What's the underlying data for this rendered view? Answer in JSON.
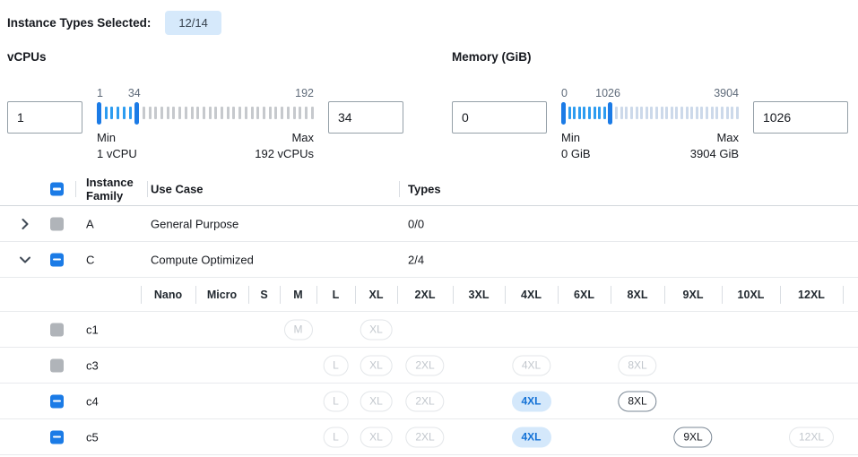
{
  "header": {
    "label": "Instance Types Selected:",
    "badge": "12/14"
  },
  "filters": {
    "vcpus": {
      "title": "vCPUs",
      "low_input": "1",
      "high_input": "34",
      "scale": {
        "min": "1",
        "high": "34",
        "max": "192"
      },
      "min_caption": "Min",
      "min_detail": "1 vCPU",
      "max_caption": "Max",
      "max_detail": "192 vCPUs"
    },
    "memory": {
      "title": "Memory (GiB)",
      "low_input": "0",
      "high_input": "1026",
      "scale": {
        "min": "0",
        "high": "1026",
        "max": "3904"
      },
      "min_caption": "Min",
      "min_detail": "0 GiB",
      "max_caption": "Max",
      "max_detail": "3904 GiB"
    }
  },
  "table": {
    "headers": {
      "family": "Instance Family",
      "use_case": "Use Case",
      "types": "Types"
    },
    "sizes": [
      "Nano",
      "Micro",
      "S",
      "M",
      "L",
      "XL",
      "2XL",
      "3XL",
      "4XL",
      "6XL",
      "8XL",
      "9XL",
      "10XL",
      "12XL"
    ],
    "families": [
      {
        "name": "A",
        "use_case": "General Purpose",
        "types": "0/0",
        "expanded": false,
        "checkbox": "disabled"
      },
      {
        "name": "C",
        "use_case": "Compute Optimized",
        "types": "2/4",
        "expanded": true,
        "checkbox": "indeterminate"
      }
    ],
    "instances": [
      {
        "name": "c1",
        "checkbox": "disabled",
        "chips": {
          "M": "disabled",
          "XL": "disabled"
        }
      },
      {
        "name": "c3",
        "checkbox": "disabled",
        "chips": {
          "L": "disabled",
          "XL": "disabled",
          "2XL": "disabled",
          "4XL": "disabled",
          "8XL": "disabled"
        }
      },
      {
        "name": "c4",
        "checkbox": "indeterminate",
        "chips": {
          "L": "disabled",
          "XL": "disabled",
          "2XL": "disabled",
          "4XL": "selected",
          "8XL": "unselected"
        }
      },
      {
        "name": "c5",
        "checkbox": "indeterminate",
        "chips": {
          "L": "disabled",
          "XL": "disabled",
          "2XL": "disabled",
          "4XL": "selected",
          "9XL": "unselected",
          "12XL": "disabled"
        }
      }
    ]
  },
  "colors": {
    "accent": "#1b7be6",
    "slider_tick_selected": "#2d9cf0",
    "slider_tick_gray": "#c6c9cd",
    "slider_tick_gray_memory": "#ccd9ea",
    "badge_bg": "#d6e9fb",
    "badge_text": "#37424e",
    "chip_selected_bg": "#d4e8fb",
    "chip_selected_text": "#1371d6",
    "chip_disabled_border": "#e3e6e9",
    "chip_disabled_text": "#c2c7cd",
    "chip_enabled_border": "#7a8794",
    "checkbox_disabled": "#b0b4b9",
    "scale_label": "#5f6b7a"
  }
}
